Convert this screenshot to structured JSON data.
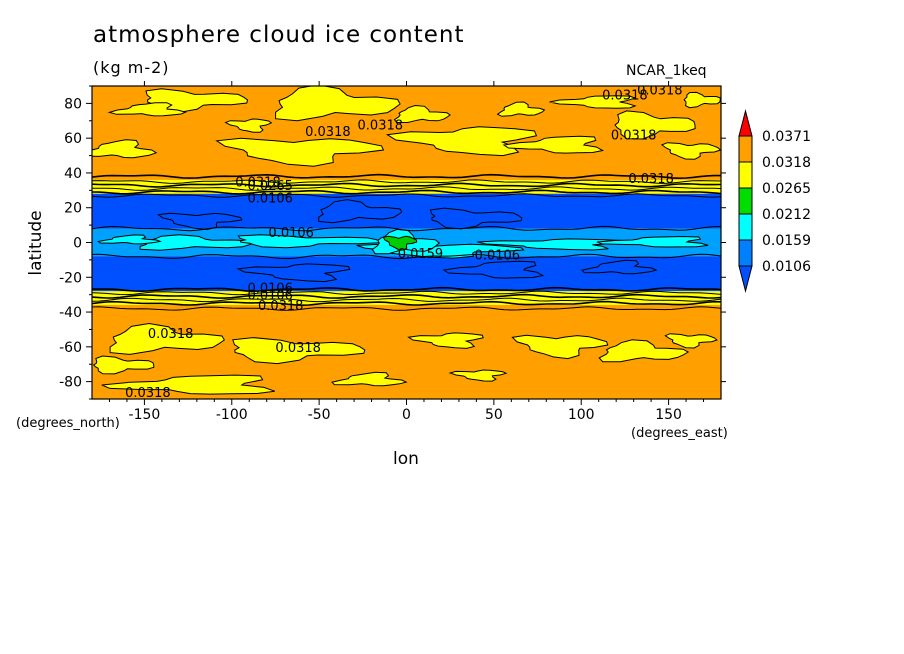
{
  "page": {
    "title": "atmosphere cloud ice content",
    "units": "(kg m-2)",
    "dataset": "NCAR_1keq"
  },
  "chart_data": {
    "type": "heatmap",
    "title": "atmosphere cloud ice content",
    "subtitle": "(kg m-2)",
    "xlabel": "lon",
    "ylabel": "latitude",
    "x_unit": "(degrees_east)",
    "y_unit": "(degrees_north)",
    "xlim": [
      -180,
      180
    ],
    "ylim": [
      -90,
      90
    ],
    "x_ticks": [
      -150,
      -100,
      -50,
      0,
      50,
      100,
      150
    ],
    "y_ticks": [
      80,
      60,
      40,
      20,
      0,
      -20,
      -40,
      -60,
      -80
    ],
    "levels": [
      0.0106,
      0.0159,
      0.0212,
      0.0265,
      0.0318,
      0.0371
    ],
    "colorbar": {
      "labels": [
        "0.0371",
        "0.0318",
        "0.0265",
        "0.0212",
        "0.0159",
        "0.0106"
      ],
      "colors": [
        "#ff0000",
        "#ffa000",
        "#ffff00",
        "#00dd00",
        "#00ffff",
        "#0080ff",
        "#0050ff"
      ]
    },
    "bands": [
      {
        "lat_from": 88,
        "lat_to": 36,
        "value_range": "0.0318-0.0371",
        "color": "#ffa000"
      },
      {
        "lat_from": 36,
        "lat_to": 28,
        "value_range": "0.0212-0.0318",
        "color": "#ffff00"
      },
      {
        "lat_from": 28,
        "lat_to": 8,
        "value_range": "<0.0106",
        "color": "#0050ff"
      },
      {
        "lat_from": 8,
        "lat_to": -8,
        "value_range": "0.0106-0.0159",
        "color": "#00a0ff"
      },
      {
        "lat_from": -8,
        "lat_to": -28,
        "value_range": "<0.0106",
        "color": "#0050ff"
      },
      {
        "lat_from": -28,
        "lat_to": -36,
        "value_range": "0.0212-0.0318",
        "color": "#ffff00"
      },
      {
        "lat_from": -36,
        "lat_to": -88,
        "value_range": "0.0318-0.0371",
        "color": "#ffa000"
      }
    ],
    "contour_labels": [
      {
        "text": "0.0318",
        "lon": 145,
        "lat": 88
      },
      {
        "text": "0.0318",
        "lon": 125,
        "lat": 85
      },
      {
        "text": "0.0318",
        "lon": -45,
        "lat": 64
      },
      {
        "text": "0.0318",
        "lon": -15,
        "lat": 68
      },
      {
        "text": "0.0318",
        "lon": 130,
        "lat": 62
      },
      {
        "text": "0.0318",
        "lon": 140,
        "lat": 37
      },
      {
        "text": "0.0318",
        "lon": -85,
        "lat": 35
      },
      {
        "text": "0.0265",
        "lon": -78,
        "lat": 33
      },
      {
        "text": "0.0106",
        "lon": -78,
        "lat": 26
      },
      {
        "text": "0.0106",
        "lon": -66,
        "lat": 6
      },
      {
        "text": "0.0159",
        "lon": 8,
        "lat": -6
      },
      {
        "text": "0.0106",
        "lon": 52,
        "lat": -7
      },
      {
        "text": "0.0106",
        "lon": -78,
        "lat": -26
      },
      {
        "text": "0.0106",
        "lon": -78,
        "lat": -30
      },
      {
        "text": "0.0318",
        "lon": -72,
        "lat": -36
      },
      {
        "text": "0.0318",
        "lon": -135,
        "lat": -52
      },
      {
        "text": "0.0318",
        "lon": -62,
        "lat": -60
      },
      {
        "text": "0.0318",
        "lon": -148,
        "lat": -86
      }
    ]
  }
}
